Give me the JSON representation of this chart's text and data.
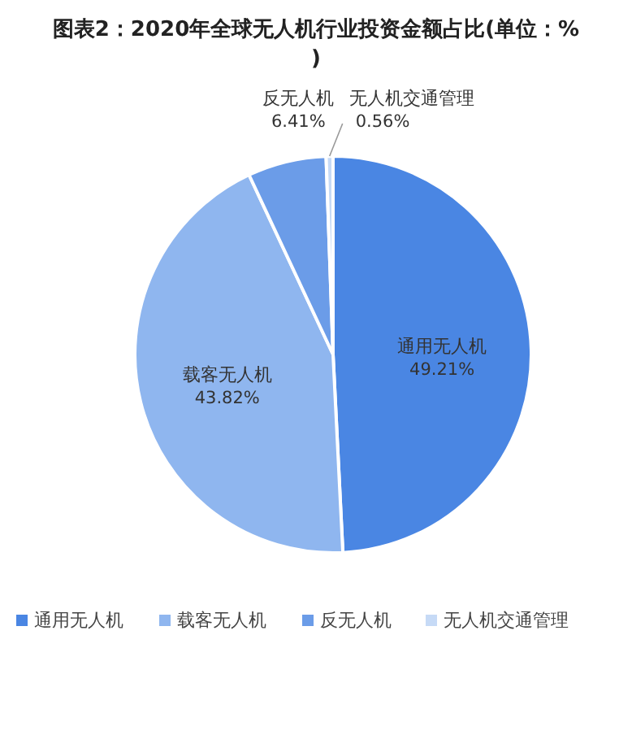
{
  "chart_data": {
    "type": "pie",
    "title": "图表2：2020年全球无人机行业投资金额占比(单位：%)",
    "categories": [
      "通用无人机",
      "载客无人机",
      "反无人机",
      "无人机交通管理"
    ],
    "values": [
      49.21,
      43.82,
      6.41,
      0.56
    ],
    "value_labels": [
      "49.21%",
      "43.82%",
      "6.41%",
      "0.56%"
    ],
    "colors": [
      "#4a86e3",
      "#8fb6ef",
      "#6b9ce8",
      "#c6daf6"
    ],
    "legend": "bottom"
  }
}
